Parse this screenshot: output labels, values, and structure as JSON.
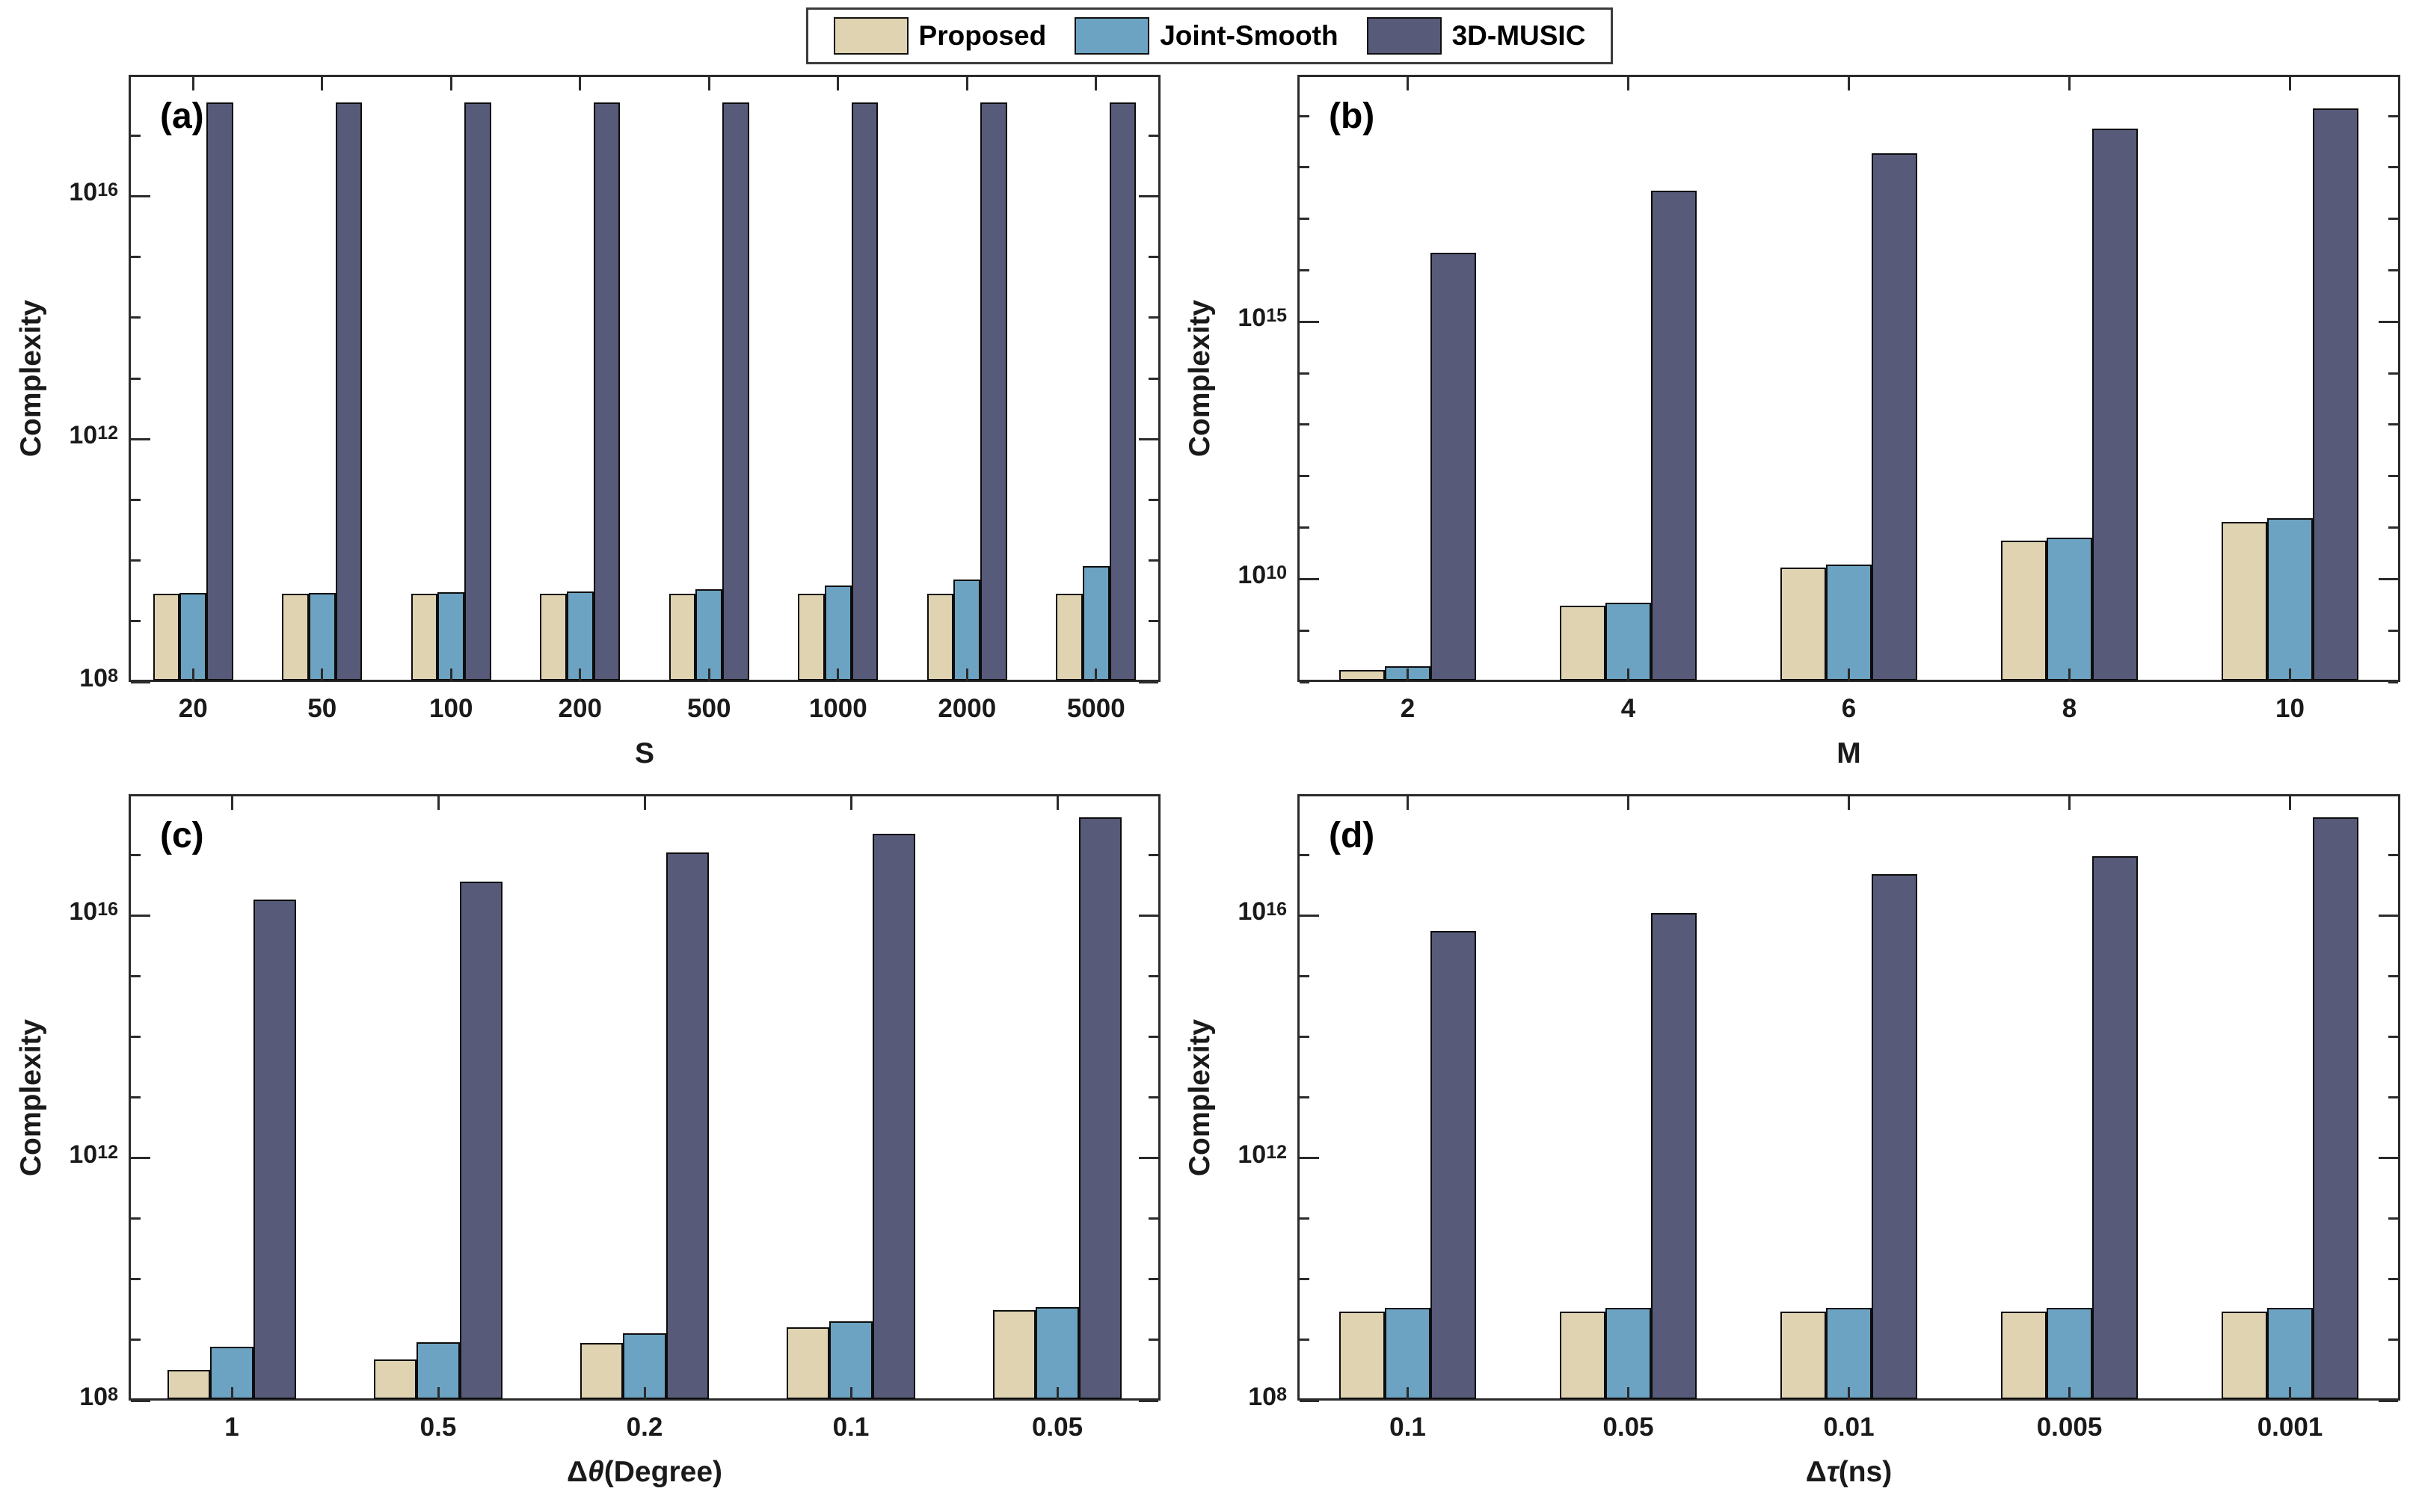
{
  "figure_title": "Complexity comparison figure",
  "legend": {
    "items": [
      {
        "label": "Proposed",
        "color": "#DFD3B1"
      },
      {
        "label": "Joint-Smooth",
        "color": "#6CA3C2"
      },
      {
        "label": "3D-MUSIC",
        "color": "#575A78"
      }
    ]
  },
  "log_base": "10",
  "chart_data": [
    {
      "id": "a",
      "type": "bar",
      "title": "(a)",
      "ylabel": "Complexity",
      "xlabel_parts": [
        {
          "text": "S",
          "italic": false
        }
      ],
      "categories": [
        "20",
        "50",
        "100",
        "200",
        "500",
        "1000",
        "2000",
        "5000"
      ],
      "series": [
        {
          "name": "Proposed",
          "values": [
            2800000000.0,
            2800000000.0,
            2800000000.0,
            2800000000.0,
            2800000000.0,
            2800000000.0,
            2800000000.0,
            2800000000.0
          ]
        },
        {
          "name": "Joint-Smooth",
          "values": [
            2900000000.0,
            2900000000.0,
            3000000000.0,
            3100000000.0,
            3400000000.0,
            3900000000.0,
            4900000000.0,
            8100000000.0
          ]
        },
        {
          "name": "3D-MUSIC",
          "values": [
            3.5e+17,
            3.5e+17,
            3.5e+17,
            3.5e+17,
            3.5e+17,
            3.5e+17,
            3.5e+17,
            3.5e+17
          ]
        }
      ],
      "y_scale": "log",
      "ylim_exp": [
        8,
        18
      ],
      "ytick_major_exps": [
        8,
        12,
        16
      ],
      "ytick_labeled_exps": [
        8,
        12,
        16
      ],
      "grid": "off",
      "legend_position": "shared top center"
    },
    {
      "id": "b",
      "type": "bar",
      "title": "(b)",
      "ylabel": "Complexity",
      "xlabel_parts": [
        {
          "text": "M",
          "italic": false
        }
      ],
      "categories": [
        "2",
        "4",
        "6",
        "8",
        "10"
      ],
      "series": [
        {
          "name": "Proposed",
          "values": [
            170000000.0,
            3000000000.0,
            17000000000.0,
            55000000000.0,
            130000000000.0
          ]
        },
        {
          "name": "Joint-Smooth",
          "values": [
            200000000.0,
            3500000000.0,
            19000000000.0,
            63000000000.0,
            150000000000.0
          ]
        },
        {
          "name": "3D-MUSIC",
          "values": [
            2.2e+16,
            3.5e+17,
            1.9e+18,
            5.6e+18,
            1.4e+19
          ]
        }
      ],
      "y_scale": "log",
      "ylim_exp": [
        8,
        19.8
      ],
      "ytick_major_exps": [
        10,
        15
      ],
      "ytick_labeled_exps": [
        10,
        15
      ],
      "grid": "off",
      "legend_position": "shared top center"
    },
    {
      "id": "c",
      "type": "bar",
      "title": "(c)",
      "ylabel": "Complexity",
      "xlabel_parts": [
        {
          "text": "Δ",
          "italic": false
        },
        {
          "text": "θ",
          "italic": true
        },
        {
          "text": "(Degree)",
          "italic": false
        }
      ],
      "categories": [
        "1",
        "0.5",
        "0.2",
        "0.1",
        "0.05"
      ],
      "series": [
        {
          "name": "Proposed",
          "values": [
            320000000.0,
            470000000.0,
            900000000.0,
            1600000000.0,
            3100000000.0
          ]
        },
        {
          "name": "Joint-Smooth",
          "values": [
            780000000.0,
            910000000.0,
            1300000000.0,
            2000000000.0,
            3500000000.0
          ]
        },
        {
          "name": "3D-MUSIC",
          "values": [
            1.8e+16,
            3.6e+16,
            1.1e+17,
            2.2e+17,
            4.2e+17
          ]
        }
      ],
      "y_scale": "log",
      "ylim_exp": [
        8,
        18
      ],
      "ytick_major_exps": [
        8,
        12,
        16
      ],
      "ytick_labeled_exps": [
        8,
        12,
        16
      ],
      "grid": "off",
      "legend_position": "shared top center"
    },
    {
      "id": "d",
      "type": "bar",
      "title": "(d)",
      "ylabel": "Complexity",
      "xlabel_parts": [
        {
          "text": "Δ",
          "italic": false
        },
        {
          "text": "τ",
          "italic": true
        },
        {
          "text": "(ns)",
          "italic": false
        }
      ],
      "categories": [
        "0.1",
        "0.05",
        "0.01",
        "0.005",
        "0.001"
      ],
      "series": [
        {
          "name": "Proposed",
          "values": [
            2900000000.0,
            2900000000.0,
            2900000000.0,
            2900000000.0,
            2900000000.0
          ]
        },
        {
          "name": "Joint-Smooth",
          "values": [
            3400000000.0,
            3400000000.0,
            3400000000.0,
            3400000000.0,
            3400000000.0
          ]
        },
        {
          "name": "3D-MUSIC",
          "values": [
            5500000000000000.0,
            1.1e+16,
            4.8e+16,
            9.5e+16,
            4.2e+17
          ]
        }
      ],
      "y_scale": "log",
      "ylim_exp": [
        8,
        18
      ],
      "ytick_major_exps": [
        8,
        12,
        16
      ],
      "ytick_labeled_exps": [
        8,
        12,
        16
      ],
      "grid": "off",
      "legend_position": "shared top center"
    }
  ]
}
